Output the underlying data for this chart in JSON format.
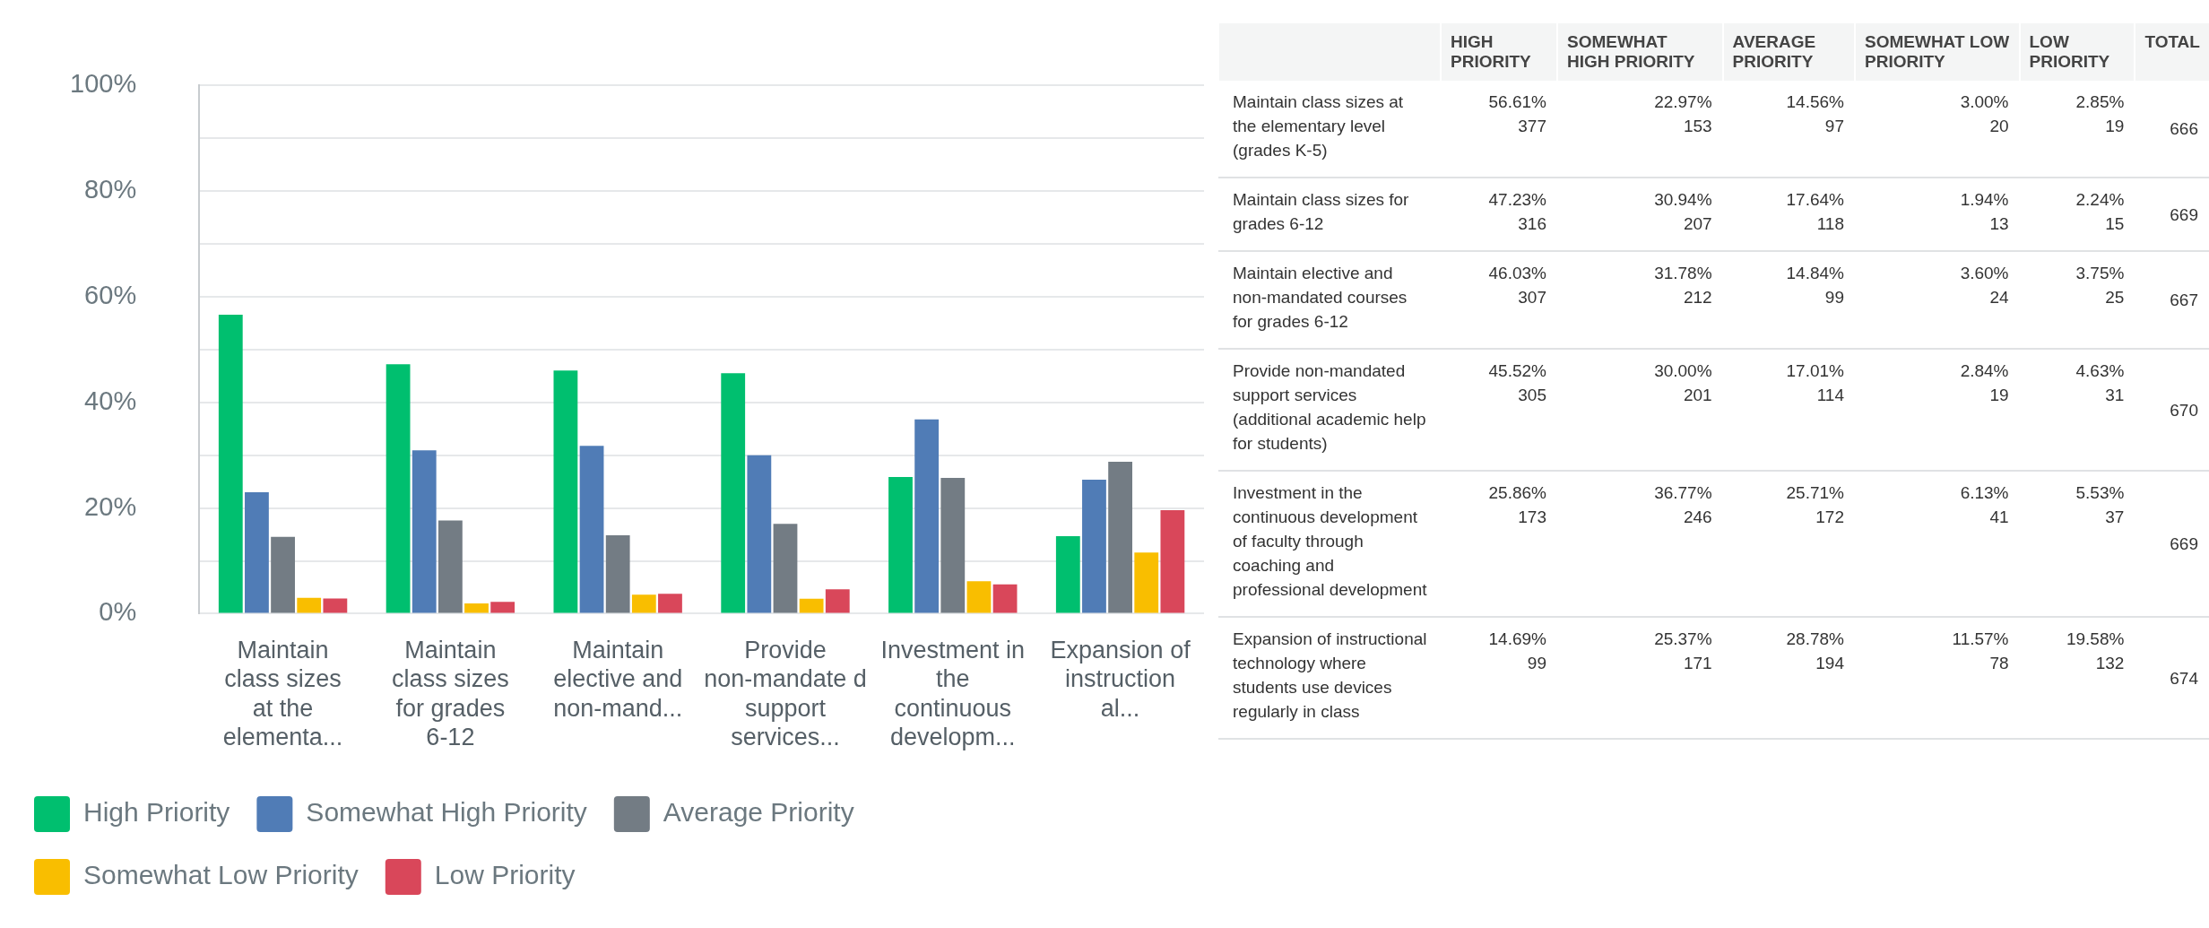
{
  "chart_data": [
    {
      "type": "bar",
      "categories": [
        "Maintain class sizes at the elementa...",
        "Maintain class sizes for grades 6-12",
        "Maintain elective and non-mand...",
        "Provide non-mandate d support services...",
        "Investment in the continuous developm...",
        "Expansion of instruction al..."
      ],
      "series": [
        {
          "name": "High Priority",
          "color": "#00bf6f",
          "values": [
            56.61,
            47.23,
            46.03,
            45.52,
            25.86,
            14.69
          ]
        },
        {
          "name": "Somewhat High Priority",
          "color": "#507cb6",
          "values": [
            22.97,
            30.94,
            31.78,
            30.0,
            36.77,
            25.37
          ]
        },
        {
          "name": "Average Priority",
          "color": "#737c84",
          "values": [
            14.56,
            17.64,
            14.84,
            17.01,
            25.71,
            28.78
          ]
        },
        {
          "name": "Somewhat Low Priority",
          "color": "#f9be00",
          "values": [
            3.0,
            1.94,
            3.6,
            2.84,
            6.13,
            11.57
          ]
        },
        {
          "name": "Low Priority",
          "color": "#d9475a",
          "values": [
            2.85,
            2.24,
            3.75,
            4.63,
            5.53,
            19.58
          ]
        }
      ],
      "ylim": [
        0,
        100
      ],
      "yticks": [
        {
          "value": 0,
          "label": "0%"
        },
        {
          "value": 10,
          "label": null
        },
        {
          "value": 20,
          "label": "20%"
        },
        {
          "value": 30,
          "label": null
        },
        {
          "value": 40,
          "label": "40%"
        },
        {
          "value": 50,
          "label": null
        },
        {
          "value": 60,
          "label": "60%"
        },
        {
          "value": 70,
          "label": null
        },
        {
          "value": 80,
          "label": "80%"
        },
        {
          "value": 90,
          "label": null
        },
        {
          "value": 100,
          "label": "100%"
        }
      ],
      "grid": "y",
      "legend": "bottom"
    },
    {
      "type": "other",
      "data_labels": true,
      "categories": [
        "Maintain class sizes at the elementary level (grades K-5)",
        "Maintain class sizes for grades 6-12",
        "Maintain elective and non-mandated courses for grades 6-12",
        "Provide non-mandated support services (additional academic help for students)",
        "Investment in the continuous development of faculty through coaching and professional development",
        "Expansion of instructional technology where students use devices regularly in class"
      ],
      "series": [
        {
          "name": "HIGH PRIORITY",
          "values": [
            56.61,
            47.23,
            46.03,
            45.52,
            25.86,
            14.69
          ],
          "value_labels": [
            "56.61%",
            "47.23%",
            "46.03%",
            "45.52%",
            "25.86%",
            "14.69%"
          ]
        },
        {
          "values": [
            377,
            316,
            307,
            305,
            173,
            99
          ]
        },
        {
          "name": "SOMEWHAT HIGH PRIORITY",
          "values": [
            22.97,
            30.94,
            31.78,
            30.0,
            36.77,
            25.37
          ],
          "value_labels": [
            "22.97%",
            "30.94%",
            "31.78%",
            "30.00%",
            "36.77%",
            "25.37%"
          ]
        },
        {
          "values": [
            153,
            207,
            212,
            201,
            246,
            171
          ]
        },
        {
          "name": "AVERAGE PRIORITY",
          "values": [
            14.56,
            17.64,
            14.84,
            17.01,
            25.71,
            28.78
          ],
          "value_labels": [
            "14.56%",
            "17.64%",
            "14.84%",
            "17.01%",
            "25.71%",
            "28.78%"
          ]
        },
        {
          "values": [
            97,
            118,
            99,
            114,
            172,
            194
          ]
        },
        {
          "name": "SOMEWHAT LOW PRIORITY",
          "values": [
            3.0,
            1.94,
            3.6,
            2.84,
            6.13,
            11.57
          ],
          "value_labels": [
            "3.00%",
            "1.94%",
            "3.60%",
            "2.84%",
            "6.13%",
            "11.57%"
          ]
        },
        {
          "values": [
            20,
            13,
            24,
            19,
            41,
            78
          ]
        },
        {
          "name": "LOW PRIORITY",
          "values": [
            2.85,
            2.24,
            3.75,
            4.63,
            5.53,
            19.58
          ],
          "value_labels": [
            "2.85%",
            "2.24%",
            "3.75%",
            "4.63%",
            "5.53%",
            "19.58%"
          ]
        },
        {
          "values": [
            19,
            15,
            25,
            31,
            37,
            132
          ]
        },
        {
          "name": "TOTAL",
          "values": [
            666,
            669,
            667,
            670,
            669,
            674
          ]
        }
      ]
    }
  ]
}
